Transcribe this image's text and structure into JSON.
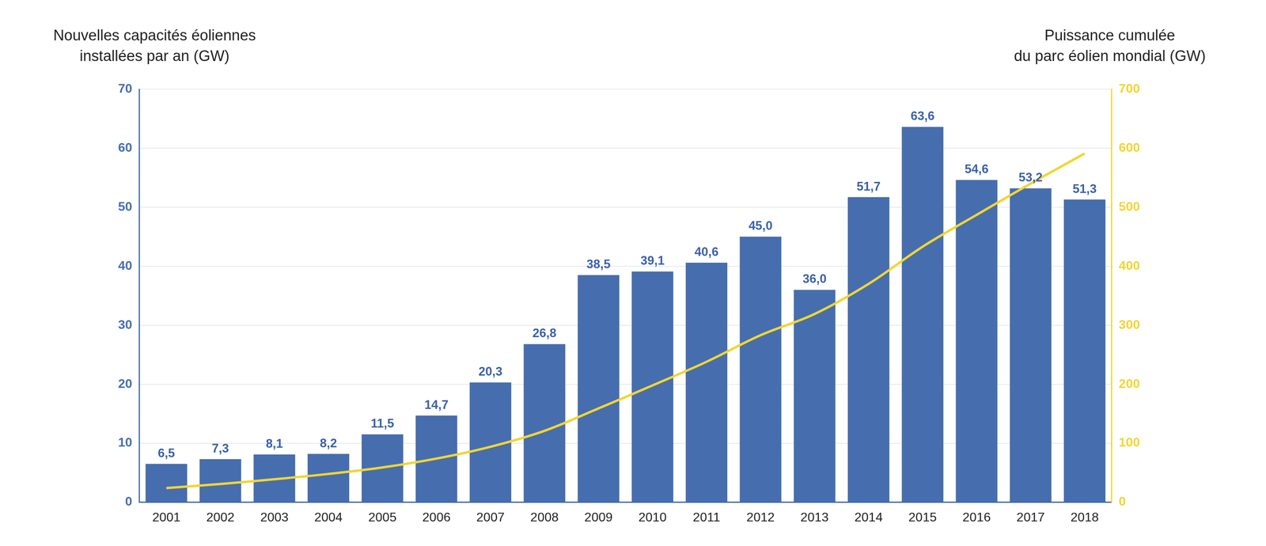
{
  "chart_data": {
    "type": "bar",
    "y_label": "Nouvelles capacités éoliennes\ninstallées par an (GW)",
    "y2_label": "Puissance cumulée\ndu parc éolien mondial (GW)",
    "categories": [
      "2001",
      "2002",
      "2003",
      "2004",
      "2005",
      "2006",
      "2007",
      "2008",
      "2009",
      "2010",
      "2011",
      "2012",
      "2013",
      "2014",
      "2015",
      "2016",
      "2017",
      "2018"
    ],
    "series": [
      {
        "type": "bar",
        "color": "#466eae",
        "data_labels": true,
        "values": [
          6.5,
          7.3,
          8.1,
          8.2,
          11.5,
          14.7,
          20.3,
          26.8,
          38.5,
          39.1,
          40.6,
          45.0,
          36.0,
          51.7,
          63.6,
          54.6,
          53.2,
          51.3
        ],
        "value_labels": [
          "6,5",
          "7,3",
          "8,1",
          "8,2",
          "11,5",
          "14,7",
          "20,3",
          "26,8",
          "38,5",
          "39,1",
          "40,6",
          "45,0",
          "36,0",
          "51,7",
          "63,6",
          "54,6",
          "53,2",
          "51,3"
        ]
      },
      {
        "type": "line",
        "axis": "y2",
        "color": "#f2d530",
        "line_style": "solid",
        "values": [
          24,
          31,
          39,
          48,
          59,
          74,
          94,
          121,
          159,
          198,
          238,
          283,
          319,
          370,
          433,
          487,
          540,
          591
        ]
      }
    ],
    "ylim": [
      0,
      70
    ],
    "yticks": [
      0,
      10,
      20,
      30,
      40,
      50,
      60,
      70
    ],
    "y2lim": [
      0,
      700
    ],
    "y2ticks": [
      0,
      100,
      200,
      300,
      400,
      500,
      600,
      700
    ],
    "grid": true
  }
}
